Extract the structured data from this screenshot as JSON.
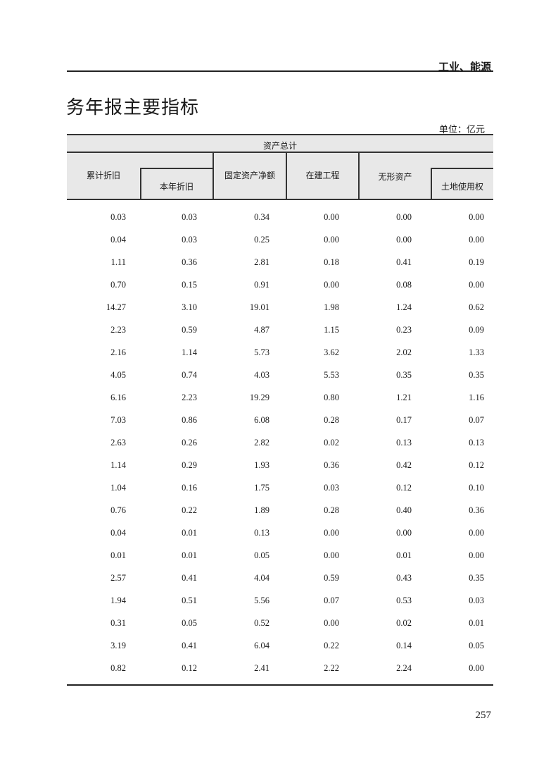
{
  "page": {
    "section": "工业、能源",
    "title": "务年报主要指标",
    "unit": "单位：亿元",
    "page_number": "257"
  },
  "table": {
    "group_header": "资产总计",
    "columns": [
      "累计折旧",
      "本年折旧",
      "固定资产净额",
      "在建工程",
      "无形资产",
      "土地使用权"
    ],
    "rows": [
      [
        "0.03",
        "0.03",
        "0.34",
        "0.00",
        "0.00",
        "0.00"
      ],
      [
        "0.04",
        "0.03",
        "0.25",
        "0.00",
        "0.00",
        "0.00"
      ],
      [
        "1.11",
        "0.36",
        "2.81",
        "0.18",
        "0.41",
        "0.19"
      ],
      [
        "0.70",
        "0.15",
        "0.91",
        "0.00",
        "0.08",
        "0.00"
      ],
      [
        "14.27",
        "3.10",
        "19.01",
        "1.98",
        "1.24",
        "0.62"
      ],
      [
        "2.23",
        "0.59",
        "4.87",
        "1.15",
        "0.23",
        "0.09"
      ],
      [
        "2.16",
        "1.14",
        "5.73",
        "3.62",
        "2.02",
        "1.33"
      ],
      [
        "4.05",
        "0.74",
        "4.03",
        "5.53",
        "0.35",
        "0.35"
      ],
      [
        "6.16",
        "2.23",
        "19.29",
        "0.80",
        "1.21",
        "1.16"
      ],
      [
        "7.03",
        "0.86",
        "6.08",
        "0.28",
        "0.17",
        "0.07"
      ],
      [
        "2.63",
        "0.26",
        "2.82",
        "0.02",
        "0.13",
        "0.13"
      ],
      [
        "1.14",
        "0.29",
        "1.93",
        "0.36",
        "0.42",
        "0.12"
      ],
      [
        "1.04",
        "0.16",
        "1.75",
        "0.03",
        "0.12",
        "0.10"
      ],
      [
        "0.76",
        "0.22",
        "1.89",
        "0.28",
        "0.40",
        "0.36"
      ],
      [
        "0.04",
        "0.01",
        "0.13",
        "0.00",
        "0.00",
        "0.00"
      ],
      [
        "0.01",
        "0.01",
        "0.05",
        "0.00",
        "0.01",
        "0.00"
      ],
      [
        "2.57",
        "0.41",
        "4.04",
        "0.59",
        "0.43",
        "0.35"
      ],
      [
        "1.94",
        "0.51",
        "5.56",
        "0.07",
        "0.53",
        "0.03"
      ],
      [
        "0.31",
        "0.05",
        "0.52",
        "0.00",
        "0.02",
        "0.01"
      ],
      [
        "3.19",
        "0.41",
        "6.04",
        "0.22",
        "0.14",
        "0.05"
      ],
      [
        "0.82",
        "0.12",
        "2.41",
        "2.22",
        "2.24",
        "0.00"
      ]
    ]
  }
}
